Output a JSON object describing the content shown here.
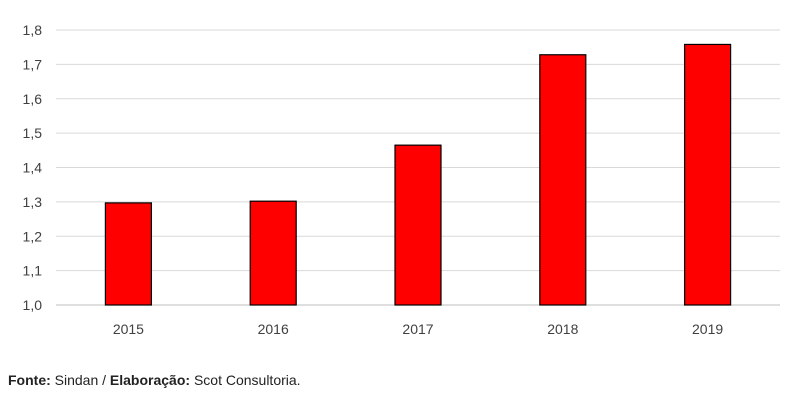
{
  "chart_data": {
    "type": "bar",
    "categories": [
      "2015",
      "2016",
      "2017",
      "2018",
      "2019"
    ],
    "values": [
      1.297,
      1.302,
      1.465,
      1.728,
      1.758
    ],
    "y_ticks": [
      "1,0",
      "1,1",
      "1,2",
      "1,3",
      "1,4",
      "1,5",
      "1,6",
      "1,7",
      "1,8"
    ],
    "ylim": [
      1.0,
      1.8
    ],
    "grid": true,
    "title": "",
    "xlabel": "",
    "ylabel": "",
    "colors": {
      "bar": "#ff0000",
      "bar_outline": "#000000",
      "grid": "#d9d9d9"
    }
  },
  "source": {
    "label1": "Fonte:",
    "text1": " Sindan / ",
    "label2": "Elaboração:",
    "text2": " Scot Consultoria."
  }
}
